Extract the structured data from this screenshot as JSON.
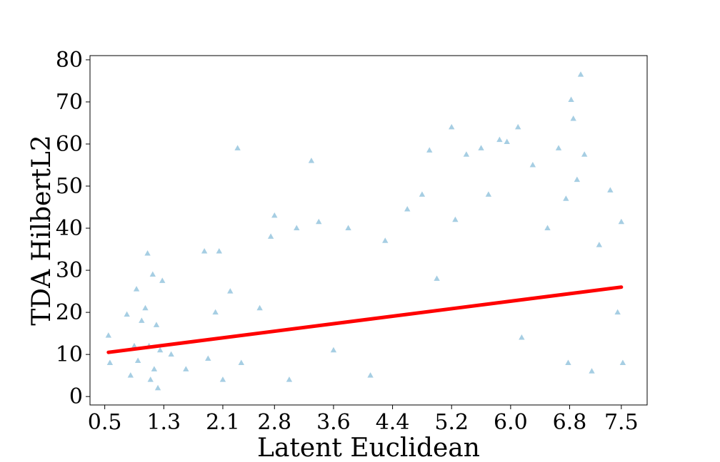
{
  "chart_data": {
    "type": "scatter",
    "title": "",
    "xlabel": "Latent Euclidean",
    "ylabel": "TDA HilbertL2",
    "xlim": [
      0.3,
      7.85
    ],
    "ylim": [
      -2,
      81
    ],
    "xticks": [
      0.5,
      1.3,
      2.1,
      2.8,
      3.6,
      4.4,
      5.2,
      6.0,
      6.8,
      7.5
    ],
    "xtick_labels": [
      "0.5",
      "1.3",
      "2.1",
      "2.8",
      "3.6",
      "4.4",
      "5.2",
      "6.0",
      "6.8",
      "7.5"
    ],
    "yticks": [
      0,
      10,
      20,
      30,
      40,
      50,
      60,
      70,
      80
    ],
    "ytick_labels": [
      "0",
      "10",
      "20",
      "30",
      "40",
      "50",
      "60",
      "70",
      "80"
    ],
    "grid": false,
    "marker": "triangle",
    "colors": {
      "points": "#a6cee3",
      "fit_line": "#ff0000"
    },
    "series": [
      {
        "type": "scatter",
        "points": [
          [
            0.55,
            14.5
          ],
          [
            0.57,
            8.0
          ],
          [
            0.8,
            19.5
          ],
          [
            0.85,
            5.0
          ],
          [
            0.9,
            12.0
          ],
          [
            0.93,
            25.5
          ],
          [
            0.95,
            8.5
          ],
          [
            1.0,
            18.0
          ],
          [
            1.05,
            21.0
          ],
          [
            1.08,
            34.0
          ],
          [
            1.1,
            12.0
          ],
          [
            1.12,
            4.0
          ],
          [
            1.15,
            29.0
          ],
          [
            1.17,
            6.5
          ],
          [
            1.2,
            17.0
          ],
          [
            1.22,
            2.0
          ],
          [
            1.25,
            11.0
          ],
          [
            1.28,
            27.5
          ],
          [
            1.4,
            10.0
          ],
          [
            1.6,
            6.5
          ],
          [
            1.85,
            34.5
          ],
          [
            1.9,
            9.0
          ],
          [
            2.0,
            20.0
          ],
          [
            2.05,
            34.5
          ],
          [
            2.1,
            4.0
          ],
          [
            2.2,
            25.0
          ],
          [
            2.3,
            59.0
          ],
          [
            2.35,
            8.0
          ],
          [
            2.6,
            21.0
          ],
          [
            2.75,
            38.0
          ],
          [
            2.8,
            43.0
          ],
          [
            3.0,
            4.0
          ],
          [
            3.1,
            40.0
          ],
          [
            3.3,
            56.0
          ],
          [
            3.4,
            41.5
          ],
          [
            3.6,
            11.0
          ],
          [
            3.8,
            40.0
          ],
          [
            4.1,
            5.0
          ],
          [
            4.3,
            37.0
          ],
          [
            4.6,
            44.5
          ],
          [
            4.8,
            48.0
          ],
          [
            4.9,
            58.5
          ],
          [
            5.0,
            28.0
          ],
          [
            5.2,
            64.0
          ],
          [
            5.25,
            42.0
          ],
          [
            5.4,
            57.5
          ],
          [
            5.6,
            59.0
          ],
          [
            5.7,
            48.0
          ],
          [
            5.85,
            61.0
          ],
          [
            5.95,
            60.5
          ],
          [
            6.1,
            64.0
          ],
          [
            6.15,
            14.0
          ],
          [
            6.3,
            55.0
          ],
          [
            6.5,
            40.0
          ],
          [
            6.65,
            59.0
          ],
          [
            6.75,
            47.0
          ],
          [
            6.78,
            8.0
          ],
          [
            6.82,
            70.5
          ],
          [
            6.85,
            66.0
          ],
          [
            6.9,
            51.5
          ],
          [
            6.95,
            76.5
          ],
          [
            7.0,
            57.5
          ],
          [
            7.1,
            6.0
          ],
          [
            7.2,
            36.0
          ],
          [
            7.35,
            49.0
          ],
          [
            7.45,
            20.0
          ],
          [
            7.5,
            41.5
          ],
          [
            7.52,
            8.0
          ]
        ]
      },
      {
        "name": "",
        "type": "line",
        "x": [
          0.55,
          7.5
        ],
        "y": [
          10.5,
          26.0
        ]
      }
    ]
  }
}
